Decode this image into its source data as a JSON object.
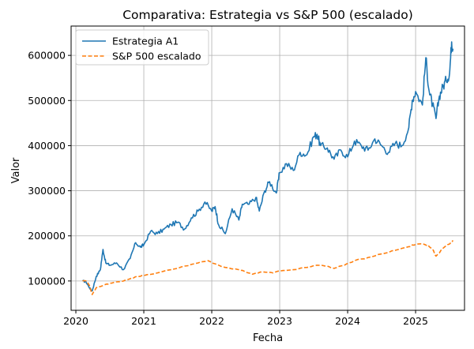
{
  "chart_data": {
    "type": "line",
    "title": "Comparativa: Estrategia vs S&P 500 (escalado)",
    "xlabel": "Fecha",
    "ylabel": "Valor",
    "xlim": [
      2019.93,
      2025.72
    ],
    "ylim": [
      35000,
      665000
    ],
    "grid": true,
    "legend_position": "top-left",
    "x_ticks": [
      {
        "value": 2020,
        "label": "2020"
      },
      {
        "value": 2021,
        "label": "2021"
      },
      {
        "value": 2022,
        "label": "2022"
      },
      {
        "value": 2023,
        "label": "2023"
      },
      {
        "value": 2024,
        "label": "2024"
      },
      {
        "value": 2025,
        "label": "2025"
      }
    ],
    "y_ticks": [
      {
        "value": 100000,
        "label": "100000"
      },
      {
        "value": 200000,
        "label": "200000"
      },
      {
        "value": 300000,
        "label": "300000"
      },
      {
        "value": 400000,
        "label": "400000"
      },
      {
        "value": 500000,
        "label": "500000"
      },
      {
        "value": 600000,
        "label": "600000"
      }
    ],
    "series": [
      {
        "name": "Estrategia A1",
        "color": "#1f77b4",
        "style": "solid",
        "x": [
          2020.1,
          2020.15,
          2020.2,
          2020.24,
          2020.3,
          2020.36,
          2020.4,
          2020.44,
          2020.5,
          2020.6,
          2020.7,
          2020.8,
          2020.88,
          2020.95,
          2021.0,
          2021.1,
          2021.2,
          2021.3,
          2021.4,
          2021.5,
          2021.6,
          2021.7,
          2021.8,
          2021.9,
          2022.0,
          2022.05,
          2022.1,
          2022.2,
          2022.3,
          2022.4,
          2022.45,
          2022.55,
          2022.65,
          2022.7,
          2022.78,
          2022.85,
          2022.95,
          2023.0,
          2023.1,
          2023.2,
          2023.3,
          2023.4,
          2023.5,
          2023.55,
          2023.6,
          2023.7,
          2023.8,
          2023.9,
          2024.0,
          2024.1,
          2024.2,
          2024.3,
          2024.4,
          2024.5,
          2024.6,
          2024.7,
          2024.8,
          2024.9,
          2024.95,
          2025.0,
          2025.1,
          2025.15,
          2025.2,
          2025.25,
          2025.3,
          2025.35,
          2025.4,
          2025.45,
          2025.5,
          2025.53,
          2025.55
        ],
        "values": [
          100000,
          98000,
          85000,
          78000,
          110000,
          125000,
          170000,
          140000,
          135000,
          140000,
          125000,
          150000,
          185000,
          175000,
          180000,
          210000,
          205000,
          215000,
          225000,
          230000,
          215000,
          240000,
          255000,
          275000,
          255000,
          265000,
          225000,
          205000,
          260000,
          235000,
          270000,
          270000,
          285000,
          255000,
          300000,
          320000,
          295000,
          340000,
          360000,
          345000,
          385000,
          380000,
          420000,
          425000,
          400000,
          395000,
          370000,
          390000,
          375000,
          410000,
          400000,
          390000,
          415000,
          400000,
          385000,
          405000,
          400000,
          440000,
          500000,
          520000,
          490000,
          595000,
          520000,
          490000,
          460000,
          510000,
          530000,
          545000,
          560000,
          630000,
          615000
        ]
      },
      {
        "name": "S&P 500 escalado",
        "color": "#ff7f0e",
        "style": "dashed",
        "x": [
          2020.1,
          2020.15,
          2020.2,
          2020.24,
          2020.3,
          2020.4,
          2020.5,
          2020.6,
          2020.7,
          2020.8,
          2020.9,
          2021.0,
          2021.2,
          2021.4,
          2021.6,
          2021.8,
          2021.95,
          2022.0,
          2022.2,
          2022.4,
          2022.5,
          2022.6,
          2022.75,
          2022.9,
          2023.0,
          2023.2,
          2023.4,
          2023.55,
          2023.7,
          2023.8,
          2023.95,
          2024.1,
          2024.3,
          2024.5,
          2024.7,
          2024.9,
          2025.0,
          2025.1,
          2025.18,
          2025.25,
          2025.3,
          2025.4,
          2025.5,
          2025.55
        ],
        "values": [
          100000,
          100000,
          90000,
          70000,
          85000,
          90000,
          95000,
          98000,
          100000,
          105000,
          110000,
          112000,
          118000,
          125000,
          133000,
          140000,
          145000,
          140000,
          130000,
          125000,
          120000,
          115000,
          120000,
          118000,
          122000,
          125000,
          130000,
          135000,
          133000,
          128000,
          135000,
          145000,
          152000,
          160000,
          168000,
          176000,
          181000,
          182000,
          180000,
          170000,
          155000,
          172000,
          182000,
          190000
        ]
      }
    ]
  }
}
